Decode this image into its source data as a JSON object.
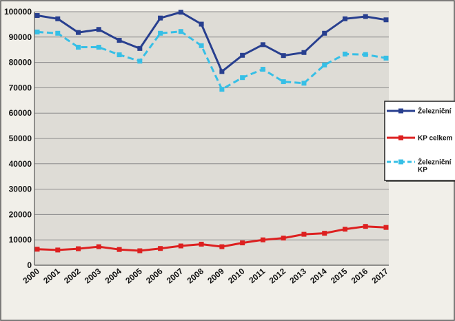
{
  "chart_data": {
    "type": "line",
    "title": "",
    "xlabel": "",
    "ylabel": "",
    "categories": [
      "2000",
      "2001",
      "2002",
      "2003",
      "2004",
      "2005",
      "2006",
      "2007",
      "2008",
      "2009",
      "2010",
      "2011",
      "2012",
      "2013",
      "2014",
      "2015",
      "2016",
      "2017"
    ],
    "ylim": [
      0,
      100000
    ],
    "yticks": [
      0,
      10000,
      20000,
      30000,
      40000,
      50000,
      60000,
      70000,
      80000,
      90000,
      100000
    ],
    "ytick_labels": [
      "0",
      "10000",
      "20000",
      "30000",
      "40000",
      "50000",
      "60000",
      "70000",
      "80000",
      "90000",
      "100000"
    ],
    "grid": "horizontal",
    "legend_position": "right",
    "series": [
      {
        "name": "Železniční",
        "color": "#283f8f",
        "style": "solid",
        "marker": "square",
        "values": [
          98500,
          97200,
          91800,
          93000,
          88700,
          85500,
          97500,
          99800,
          95100,
          76400,
          82800,
          87000,
          82700,
          83900,
          91500,
          97200,
          98100,
          96800
        ]
      },
      {
        "name": "KP celkem",
        "color": "#dd2020",
        "style": "solid",
        "marker": "square",
        "values": [
          6300,
          6000,
          6500,
          7300,
          6200,
          5700,
          6600,
          7600,
          8300,
          7300,
          8800,
          10000,
          10700,
          12200,
          12600,
          14200,
          15300,
          14900
        ]
      },
      {
        "name": "Železniční\nKP",
        "color": "#36bfe6",
        "style": "dashed",
        "marker": "square",
        "values": [
          92000,
          91500,
          86000,
          86000,
          83000,
          80500,
          91500,
          92200,
          86600,
          69400,
          74000,
          77300,
          72400,
          71800,
          79000,
          83300,
          83100,
          81700
        ]
      }
    ]
  }
}
